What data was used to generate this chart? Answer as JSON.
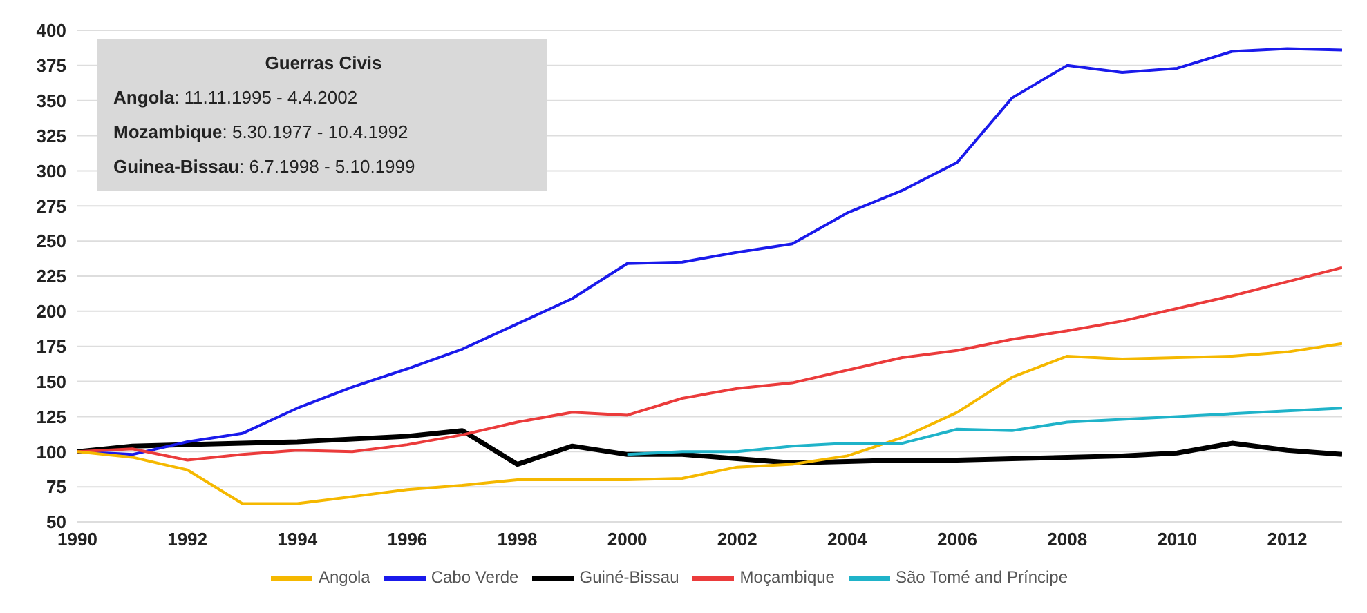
{
  "chart_data": {
    "type": "line",
    "x": [
      1990,
      1991,
      1992,
      1993,
      1994,
      1995,
      1996,
      1997,
      1998,
      1999,
      2000,
      2001,
      2002,
      2003,
      2004,
      2005,
      2006,
      2007,
      2008,
      2009,
      2010,
      2011,
      2012,
      2013
    ],
    "series": [
      {
        "name": "Guiné-Bissau",
        "color": "#000000",
        "values": [
          100,
          104,
          105,
          106,
          107,
          109,
          111,
          115,
          91,
          104,
          98,
          98,
          95,
          92,
          93,
          94,
          94,
          95,
          96,
          97,
          99,
          106,
          101,
          98
        ]
      },
      {
        "name": "Cabo Verde",
        "color": "#1a1aeb",
        "values": [
          100,
          98,
          107,
          113,
          131,
          146,
          159,
          173,
          191,
          209,
          234,
          235,
          242,
          248,
          270,
          286,
          306,
          352,
          375,
          370,
          373,
          385,
          387,
          386
        ]
      },
      {
        "name": "Moçambique",
        "color": "#eb3b3b",
        "values": [
          100,
          102,
          94,
          98,
          101,
          100,
          105,
          112,
          121,
          128,
          126,
          138,
          145,
          149,
          158,
          167,
          172,
          180,
          186,
          193,
          202,
          211,
          221,
          231
        ]
      },
      {
        "name": "Angola",
        "color": "#f5b800",
        "values": [
          100,
          96,
          87,
          63,
          63,
          68,
          73,
          76,
          80,
          80,
          80,
          81,
          89,
          91,
          97,
          110,
          128,
          153,
          168,
          166,
          167,
          168,
          171,
          177
        ]
      },
      {
        "name": "São Tomé and Príncipe",
        "color": "#1fb3c9",
        "values": [
          null,
          null,
          null,
          null,
          null,
          null,
          null,
          null,
          null,
          null,
          98,
          100,
          100,
          104,
          106,
          106,
          116,
          115,
          121,
          123,
          125,
          127,
          129,
          131
        ]
      }
    ],
    "xlim": [
      1990,
      2013
    ],
    "xticks": [
      1990,
      1992,
      1994,
      1996,
      1998,
      2000,
      2002,
      2004,
      2006,
      2008,
      2010,
      2012
    ],
    "ylim": [
      50,
      400
    ],
    "yticks": [
      50,
      75,
      100,
      125,
      150,
      175,
      200,
      225,
      250,
      275,
      300,
      325,
      350,
      375,
      400
    ],
    "grid": "y",
    "legend": "bottom",
    "annotations": [
      "Guerras Civis",
      "Angola: 11.11.1995 - 4.4.2002",
      "Mozambique: 5.30.1977 - 10.4.1992",
      "Guinea-Bissau: 6.7.1998 - 5.10.1999"
    ]
  }
}
